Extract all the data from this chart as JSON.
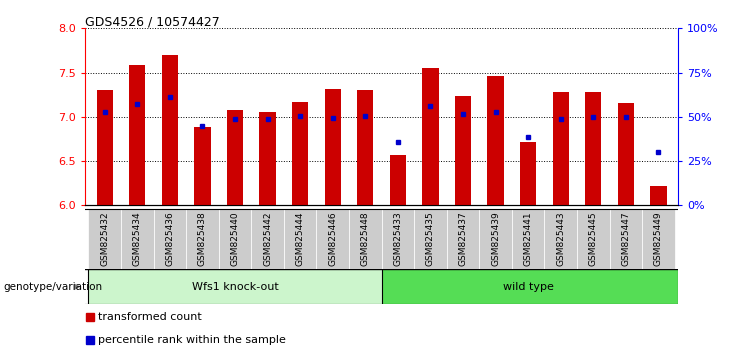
{
  "title": "GDS4526 / 10574427",
  "samples": [
    "GSM825432",
    "GSM825434",
    "GSM825436",
    "GSM825438",
    "GSM825440",
    "GSM825442",
    "GSM825444",
    "GSM825446",
    "GSM825448",
    "GSM825433",
    "GSM825435",
    "GSM825437",
    "GSM825439",
    "GSM825441",
    "GSM825443",
    "GSM825445",
    "GSM825447",
    "GSM825449"
  ],
  "red_bar_heights": [
    7.3,
    7.58,
    7.7,
    6.88,
    7.08,
    7.05,
    7.17,
    7.32,
    7.3,
    6.57,
    7.55,
    7.23,
    7.46,
    6.72,
    7.28,
    7.28,
    7.16,
    6.22
  ],
  "blue_dot_values": [
    7.05,
    7.14,
    7.22,
    6.9,
    6.98,
    6.98,
    7.01,
    6.99,
    7.01,
    6.72,
    7.12,
    7.03,
    7.05,
    6.77,
    6.98,
    7.0,
    7.0,
    6.6
  ],
  "ymin": 6.0,
  "ymax": 8.0,
  "yticks_left": [
    6.0,
    6.5,
    7.0,
    7.5,
    8.0
  ],
  "yticks_right": [
    0,
    25,
    50,
    75,
    100
  ],
  "ytick_right_labels": [
    "0%",
    "25%",
    "50%",
    "75%",
    "100%"
  ],
  "group1_label": "Wfs1 knock-out",
  "group2_label": "wild type",
  "group1_count": 9,
  "group2_count": 9,
  "bar_color": "#cc0000",
  "dot_color": "#0000cc",
  "bar_width": 0.5,
  "group1_bg": "#ccf5cc",
  "group2_bg": "#55dd55",
  "tick_label_bg": "#cccccc",
  "legend_red_label": "transformed count",
  "legend_blue_label": "percentile rank within the sample",
  "genotype_label": "genotype/variation"
}
